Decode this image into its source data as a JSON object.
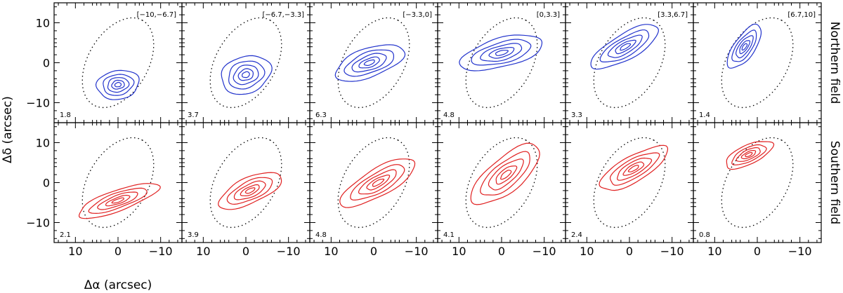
{
  "chart_data": {
    "type": "contour-grid",
    "layout": {
      "rows": 2,
      "cols": 6
    },
    "x_label": "Δα (arcsec)",
    "y_label": "Δδ (arcsec)",
    "x_axis_reversed": true,
    "xlim": [
      15,
      -15
    ],
    "ylim": [
      -15,
      15
    ],
    "x_ticks": [
      10,
      0,
      -10
    ],
    "y_ticks": [
      10,
      0,
      -10
    ],
    "velocity_bins": [
      "[−10,−6.7]",
      "[−6.7,−3.3]",
      "[−3.3,0]",
      "[0,3.3]",
      "[3.3,6.7]",
      "[6.7,10]"
    ],
    "ellipse": {
      "center": [
        0,
        0
      ],
      "semi_major": 11.5,
      "semi_minor": 7.5,
      "position_angle_deg": 60,
      "style": "dotted"
    },
    "rows": [
      {
        "name": "Northern field",
        "color": "#2233cc",
        "peaks": [
          "1.8",
          "3.7",
          "6.3",
          "4.8",
          "3.3",
          "1.4"
        ],
        "blobs": [
          {
            "x": 0,
            "y": -5.5,
            "a": 5,
            "b": 3.6,
            "ang": 10
          },
          {
            "x": 0,
            "y": -3,
            "a": 6,
            "b": 4.6,
            "ang": 20
          },
          {
            "x": 1,
            "y": 0,
            "a": 8.5,
            "b": 3.6,
            "ang": 20
          },
          {
            "x": 0,
            "y": 2.5,
            "a": 10,
            "b": 3.6,
            "ang": 15
          },
          {
            "x": 1,
            "y": 4,
            "a": 9,
            "b": 3.2,
            "ang": 30
          },
          {
            "x": 3,
            "y": 4,
            "a": 6,
            "b": 2.6,
            "ang": 55
          }
        ]
      },
      {
        "name": "Southern field",
        "color": "#e02020",
        "peaks": [
          "2.1",
          "3.9",
          "4.8",
          "4.1",
          "2.4",
          "0.8"
        ],
        "blobs": [
          {
            "x": 0,
            "y": -4.5,
            "a": 10,
            "b": 2.6,
            "ang": 20
          },
          {
            "x": -1,
            "y": -2,
            "a": 8,
            "b": 3.2,
            "ang": 25
          },
          {
            "x": -1,
            "y": 0,
            "a": 10,
            "b": 3.4,
            "ang": 30
          },
          {
            "x": -1,
            "y": 2,
            "a": 10,
            "b": 4.2,
            "ang": 40
          },
          {
            "x": -1,
            "y": 3.5,
            "a": 9,
            "b": 3.2,
            "ang": 30
          },
          {
            "x": 2,
            "y": 7,
            "a": 6,
            "b": 2.4,
            "ang": 25
          }
        ]
      }
    ]
  }
}
